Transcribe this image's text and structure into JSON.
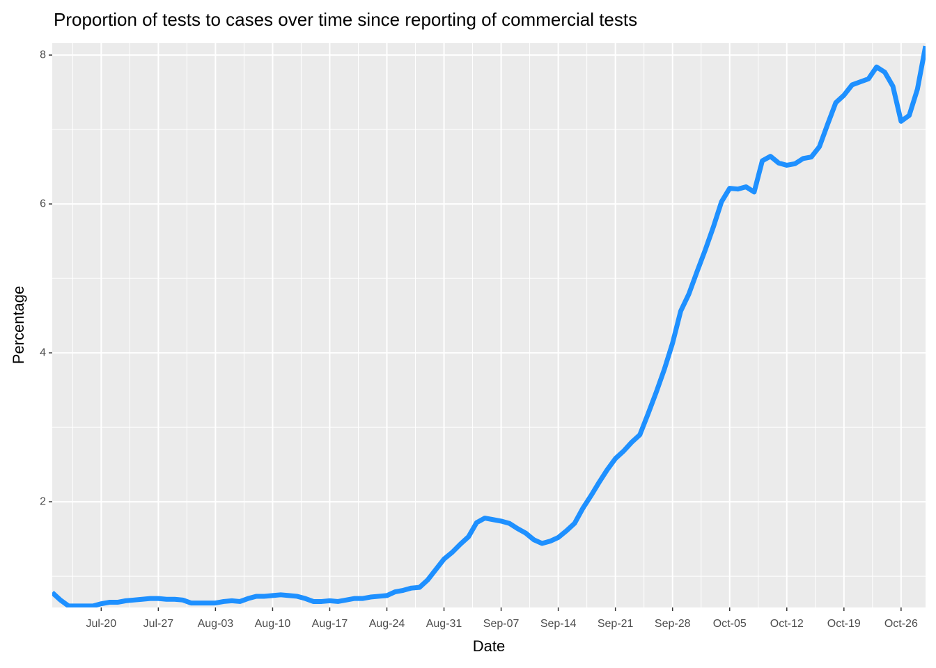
{
  "chart_data": {
    "type": "line",
    "title": "Proportion of tests to cases over time since reporting of commercial tests",
    "xlabel": "Date",
    "ylabel": "Percentage",
    "x": [
      "07-14",
      "07-15",
      "07-16",
      "07-17",
      "07-18",
      "07-19",
      "07-20",
      "07-21",
      "07-22",
      "07-23",
      "07-24",
      "07-25",
      "07-26",
      "07-27",
      "07-28",
      "07-29",
      "07-30",
      "07-31",
      "08-01",
      "08-02",
      "08-03",
      "08-04",
      "08-05",
      "08-06",
      "08-07",
      "08-08",
      "08-09",
      "08-10",
      "08-11",
      "08-12",
      "08-13",
      "08-14",
      "08-15",
      "08-16",
      "08-17",
      "08-18",
      "08-19",
      "08-20",
      "08-21",
      "08-22",
      "08-23",
      "08-24",
      "08-25",
      "08-26",
      "08-27",
      "08-28",
      "08-29",
      "08-30",
      "08-31",
      "09-01",
      "09-02",
      "09-03",
      "09-04",
      "09-05",
      "09-06",
      "09-07",
      "09-08",
      "09-09",
      "09-10",
      "09-11",
      "09-12",
      "09-13",
      "09-14",
      "09-15",
      "09-16",
      "09-17",
      "09-18",
      "09-19",
      "09-20",
      "09-21",
      "09-22",
      "09-23",
      "09-24",
      "09-25",
      "09-26",
      "09-27",
      "09-28",
      "09-29",
      "09-30",
      "10-01",
      "10-02",
      "10-03",
      "10-04",
      "10-05",
      "10-06",
      "10-07",
      "10-08",
      "10-09",
      "10-10",
      "10-11",
      "10-12",
      "10-13",
      "10-14",
      "10-15",
      "10-16",
      "10-17",
      "10-18",
      "10-19",
      "10-20",
      "10-21",
      "10-22",
      "10-23",
      "10-24",
      "10-25",
      "10-26",
      "10-27",
      "10-28",
      "10-29"
    ],
    "series": [
      {
        "color": "#1e90ff",
        "values": [
          0.78,
          0.68,
          0.6,
          0.6,
          0.6,
          0.6,
          0.63,
          0.65,
          0.65,
          0.67,
          0.68,
          0.69,
          0.7,
          0.7,
          0.69,
          0.69,
          0.68,
          0.64,
          0.64,
          0.64,
          0.64,
          0.66,
          0.67,
          0.66,
          0.7,
          0.73,
          0.73,
          0.74,
          0.75,
          0.74,
          0.73,
          0.7,
          0.66,
          0.66,
          0.67,
          0.66,
          0.68,
          0.7,
          0.7,
          0.72,
          0.73,
          0.74,
          0.79,
          0.81,
          0.84,
          0.85,
          0.95,
          1.09,
          1.23,
          1.32,
          1.43,
          1.53,
          1.72,
          1.78,
          1.76,
          1.74,
          1.71,
          1.64,
          1.58,
          1.49,
          1.44,
          1.47,
          1.52,
          1.61,
          1.71,
          1.91,
          2.08,
          2.26,
          2.43,
          2.58,
          2.68,
          2.8,
          2.9,
          3.18,
          3.47,
          3.78,
          4.13,
          4.56,
          4.79,
          5.09,
          5.38,
          5.69,
          6.03,
          6.21,
          6.2,
          6.23,
          6.16,
          6.58,
          6.64,
          6.55,
          6.52,
          6.54,
          6.61,
          6.63,
          6.77,
          7.07,
          7.36,
          7.46,
          7.6,
          7.64,
          7.68,
          7.84,
          7.77,
          7.58,
          7.11,
          7.19,
          7.54,
          8.12
        ]
      }
    ],
    "xlim": [
      "07-14",
      "10-29"
    ],
    "xticks": [
      {
        "value": "07-20",
        "label": "Jul-20"
      },
      {
        "value": "07-27",
        "label": "Jul-27"
      },
      {
        "value": "08-03",
        "label": "Aug-03"
      },
      {
        "value": "08-10",
        "label": "Aug-10"
      },
      {
        "value": "08-17",
        "label": "Aug-17"
      },
      {
        "value": "08-24",
        "label": "Aug-24"
      },
      {
        "value": "08-31",
        "label": "Aug-31"
      },
      {
        "value": "09-07",
        "label": "Sep-07"
      },
      {
        "value": "09-14",
        "label": "Sep-14"
      },
      {
        "value": "09-21",
        "label": "Sep-21"
      },
      {
        "value": "09-28",
        "label": "Sep-28"
      },
      {
        "value": "10-05",
        "label": "Oct-05"
      },
      {
        "value": "10-12",
        "label": "Oct-12"
      },
      {
        "value": "10-19",
        "label": "Oct-19"
      },
      {
        "value": "10-26",
        "label": "Oct-26"
      }
    ],
    "ylim": [
      0.58,
      8.16
    ],
    "yticks": [
      2,
      4,
      6,
      8
    ],
    "grid": true
  }
}
